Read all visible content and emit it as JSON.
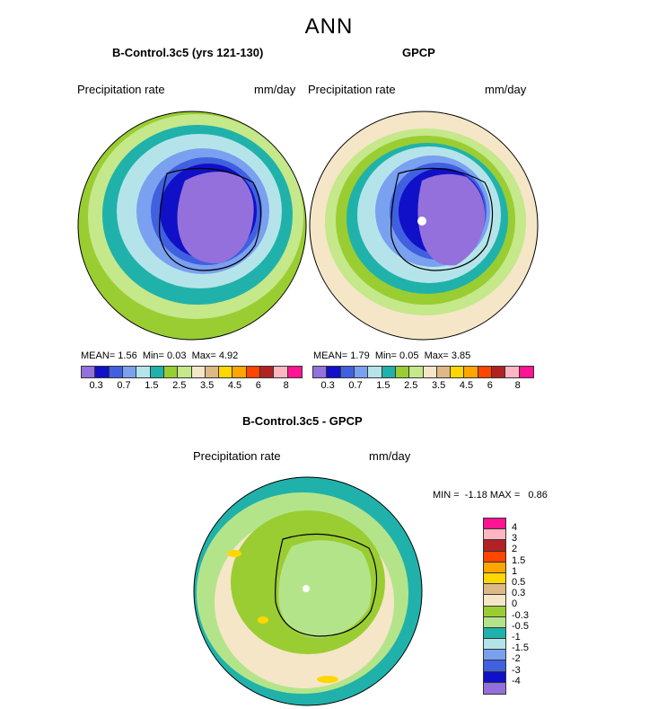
{
  "title": "ANN",
  "panels": [
    {
      "name": "B-Control.3c5 (yrs 121-130)",
      "variable": "Precipitation rate",
      "units": "mm/day",
      "stats": {
        "mean_label": "MEAN=",
        "mean": "1.56",
        "min_label": "Min=",
        "min": "0.03",
        "max_label": "Max=",
        "max": "4.92"
      }
    },
    {
      "name": "GPCP",
      "variable": "Precipitation rate",
      "units": "mm/day",
      "stats": {
        "mean_label": "MEAN=",
        "mean": "1.79",
        "min_label": "Min=",
        "min": "0.05",
        "max_label": "Max=",
        "max": "3.85"
      }
    }
  ],
  "diff_panel": {
    "name": "B-Control.3c5 - GPCP",
    "variable": "Precipitation rate",
    "units": "mm/day",
    "min_label": "MIN =",
    "min": "-1.18",
    "max_label": "MAX =",
    "max": "0.86"
  },
  "colorbar": {
    "colors": [
      "#9370db",
      "#1010c8",
      "#4060e0",
      "#7aa0f0",
      "#b4e4ea",
      "#20b2aa",
      "#9acd32",
      "#c4e88a",
      "#f5e6c8",
      "#deb887",
      "#ffd700",
      "#ffa500",
      "#ff4500",
      "#b22222",
      "#ffb6c1",
      "#ff1493"
    ],
    "labels": [
      "0.3",
      "0.7",
      "1.5",
      "2.5",
      "3.5",
      "4.5",
      "6",
      "8"
    ]
  },
  "diff_colorbar": {
    "colors": [
      "#ff1493",
      "#ffb6c1",
      "#b22222",
      "#ff4500",
      "#ffa500",
      "#ffd700",
      "#deb887",
      "#f5e6c8",
      "#9acd32",
      "#b4e48a",
      "#20b2aa",
      "#b4e4ea",
      "#7aa0f0",
      "#4060e0",
      "#1010c8",
      "#9370db"
    ],
    "labels": [
      "4",
      "3",
      "2",
      "1.5",
      "1",
      "0.5",
      "0.3",
      "0",
      "-0.3",
      "-0.5",
      "-1",
      "-1.5",
      "-2",
      "-3",
      "-4"
    ]
  }
}
